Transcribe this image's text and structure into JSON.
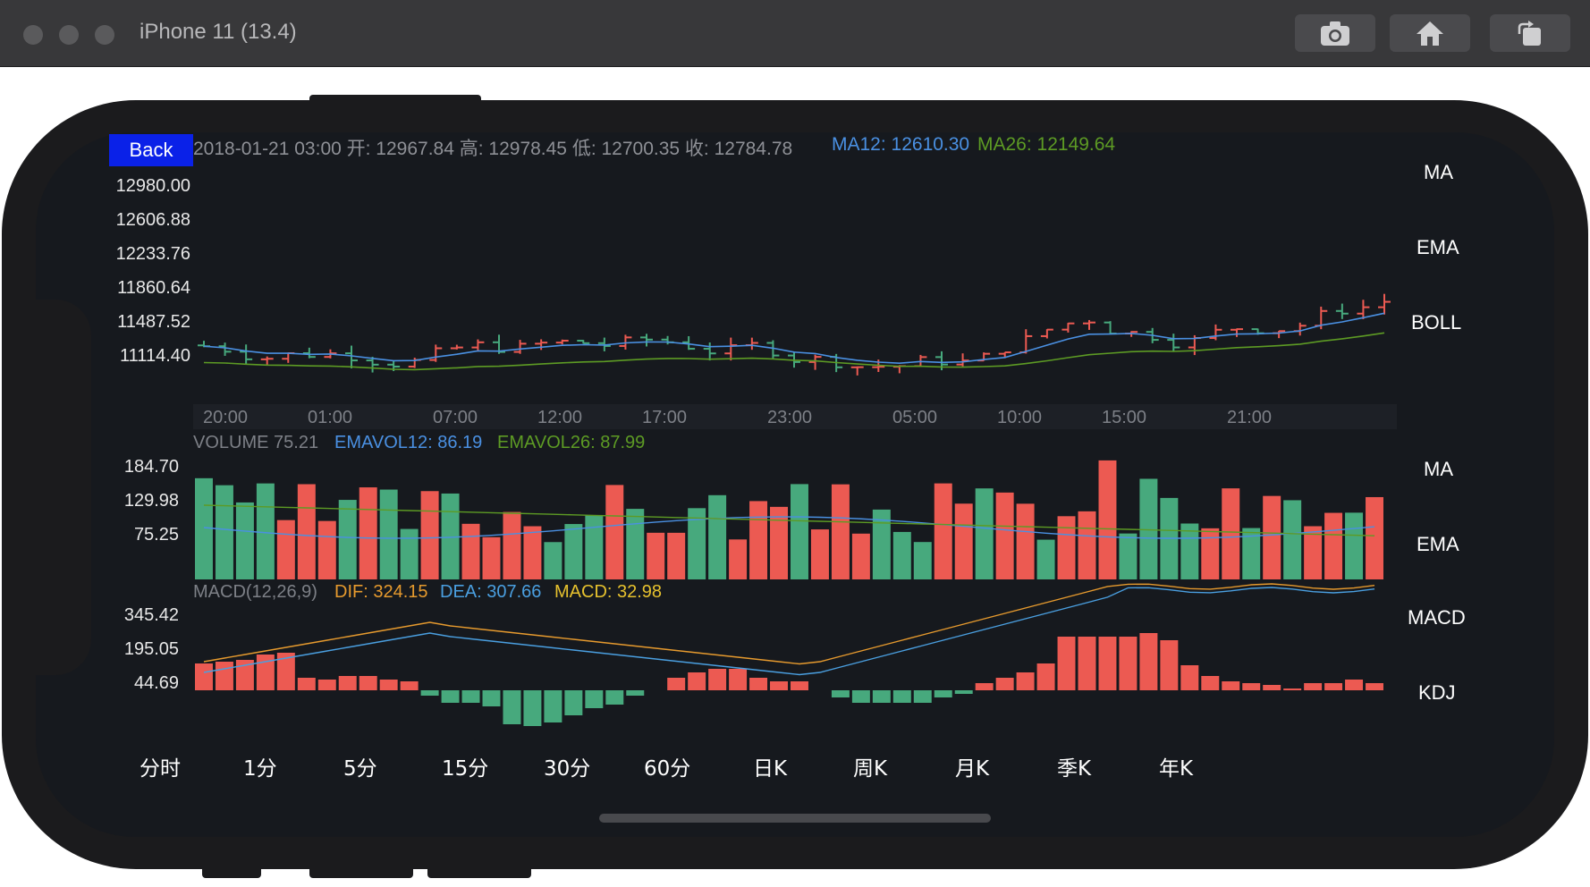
{
  "simulator": {
    "title": "iPhone 11 (13.4)",
    "buttons": [
      "screenshot-icon",
      "home-icon",
      "rotate-icon"
    ]
  },
  "back_label": "Back",
  "header": {
    "info_text": "2018-01-21 03:00 开: 12967.84 高: 12978.45 低: 12700.35 收: 12784.78",
    "ma12": "MA12: 12610.30",
    "ma26": "MA26: 12149.64"
  },
  "colors": {
    "up": "#ec5a52",
    "down": "#47a97d",
    "ma12": "#4a90e2",
    "ma26": "#5d9b24",
    "dif": "#e69a2e",
    "dea": "#4a9fe0",
    "macd": "#e6c12e",
    "back_button": "#0a21e8"
  },
  "main_chart": {
    "y_labels": [
      "12980.00",
      "12606.88",
      "12233.76",
      "11860.64",
      "11487.52",
      "11114.40"
    ],
    "x_labels": [
      "20:00",
      "01:00",
      "07:00",
      "12:00",
      "17:00",
      "23:00",
      "05:00",
      "10:00",
      "15:00",
      "21:00"
    ],
    "side_labels": [
      "MA",
      "EMA",
      "BOLL"
    ]
  },
  "volume_chart": {
    "header": "VOLUME 75.21",
    "emavol12": "EMAVOL12: 86.19",
    "emavol26": "EMAVOL26: 87.99",
    "y_labels": [
      "184.70",
      "129.98",
      "75.25"
    ],
    "side_labels": [
      "MA",
      "EMA"
    ]
  },
  "macd_chart": {
    "header": "MACD(12,26,9)",
    "dif": "DIF: 324.15",
    "dea": "DEA: 307.66",
    "macd": "MACD: 32.98",
    "y_labels": [
      "345.42",
      "195.05",
      "44.69"
    ],
    "side_labels": [
      "MACD",
      "KDJ"
    ]
  },
  "periods": [
    "分时",
    "1分",
    "5分",
    "15分",
    "30分",
    "60分",
    "日K",
    "周K",
    "月K",
    "季K",
    "年K"
  ]
}
